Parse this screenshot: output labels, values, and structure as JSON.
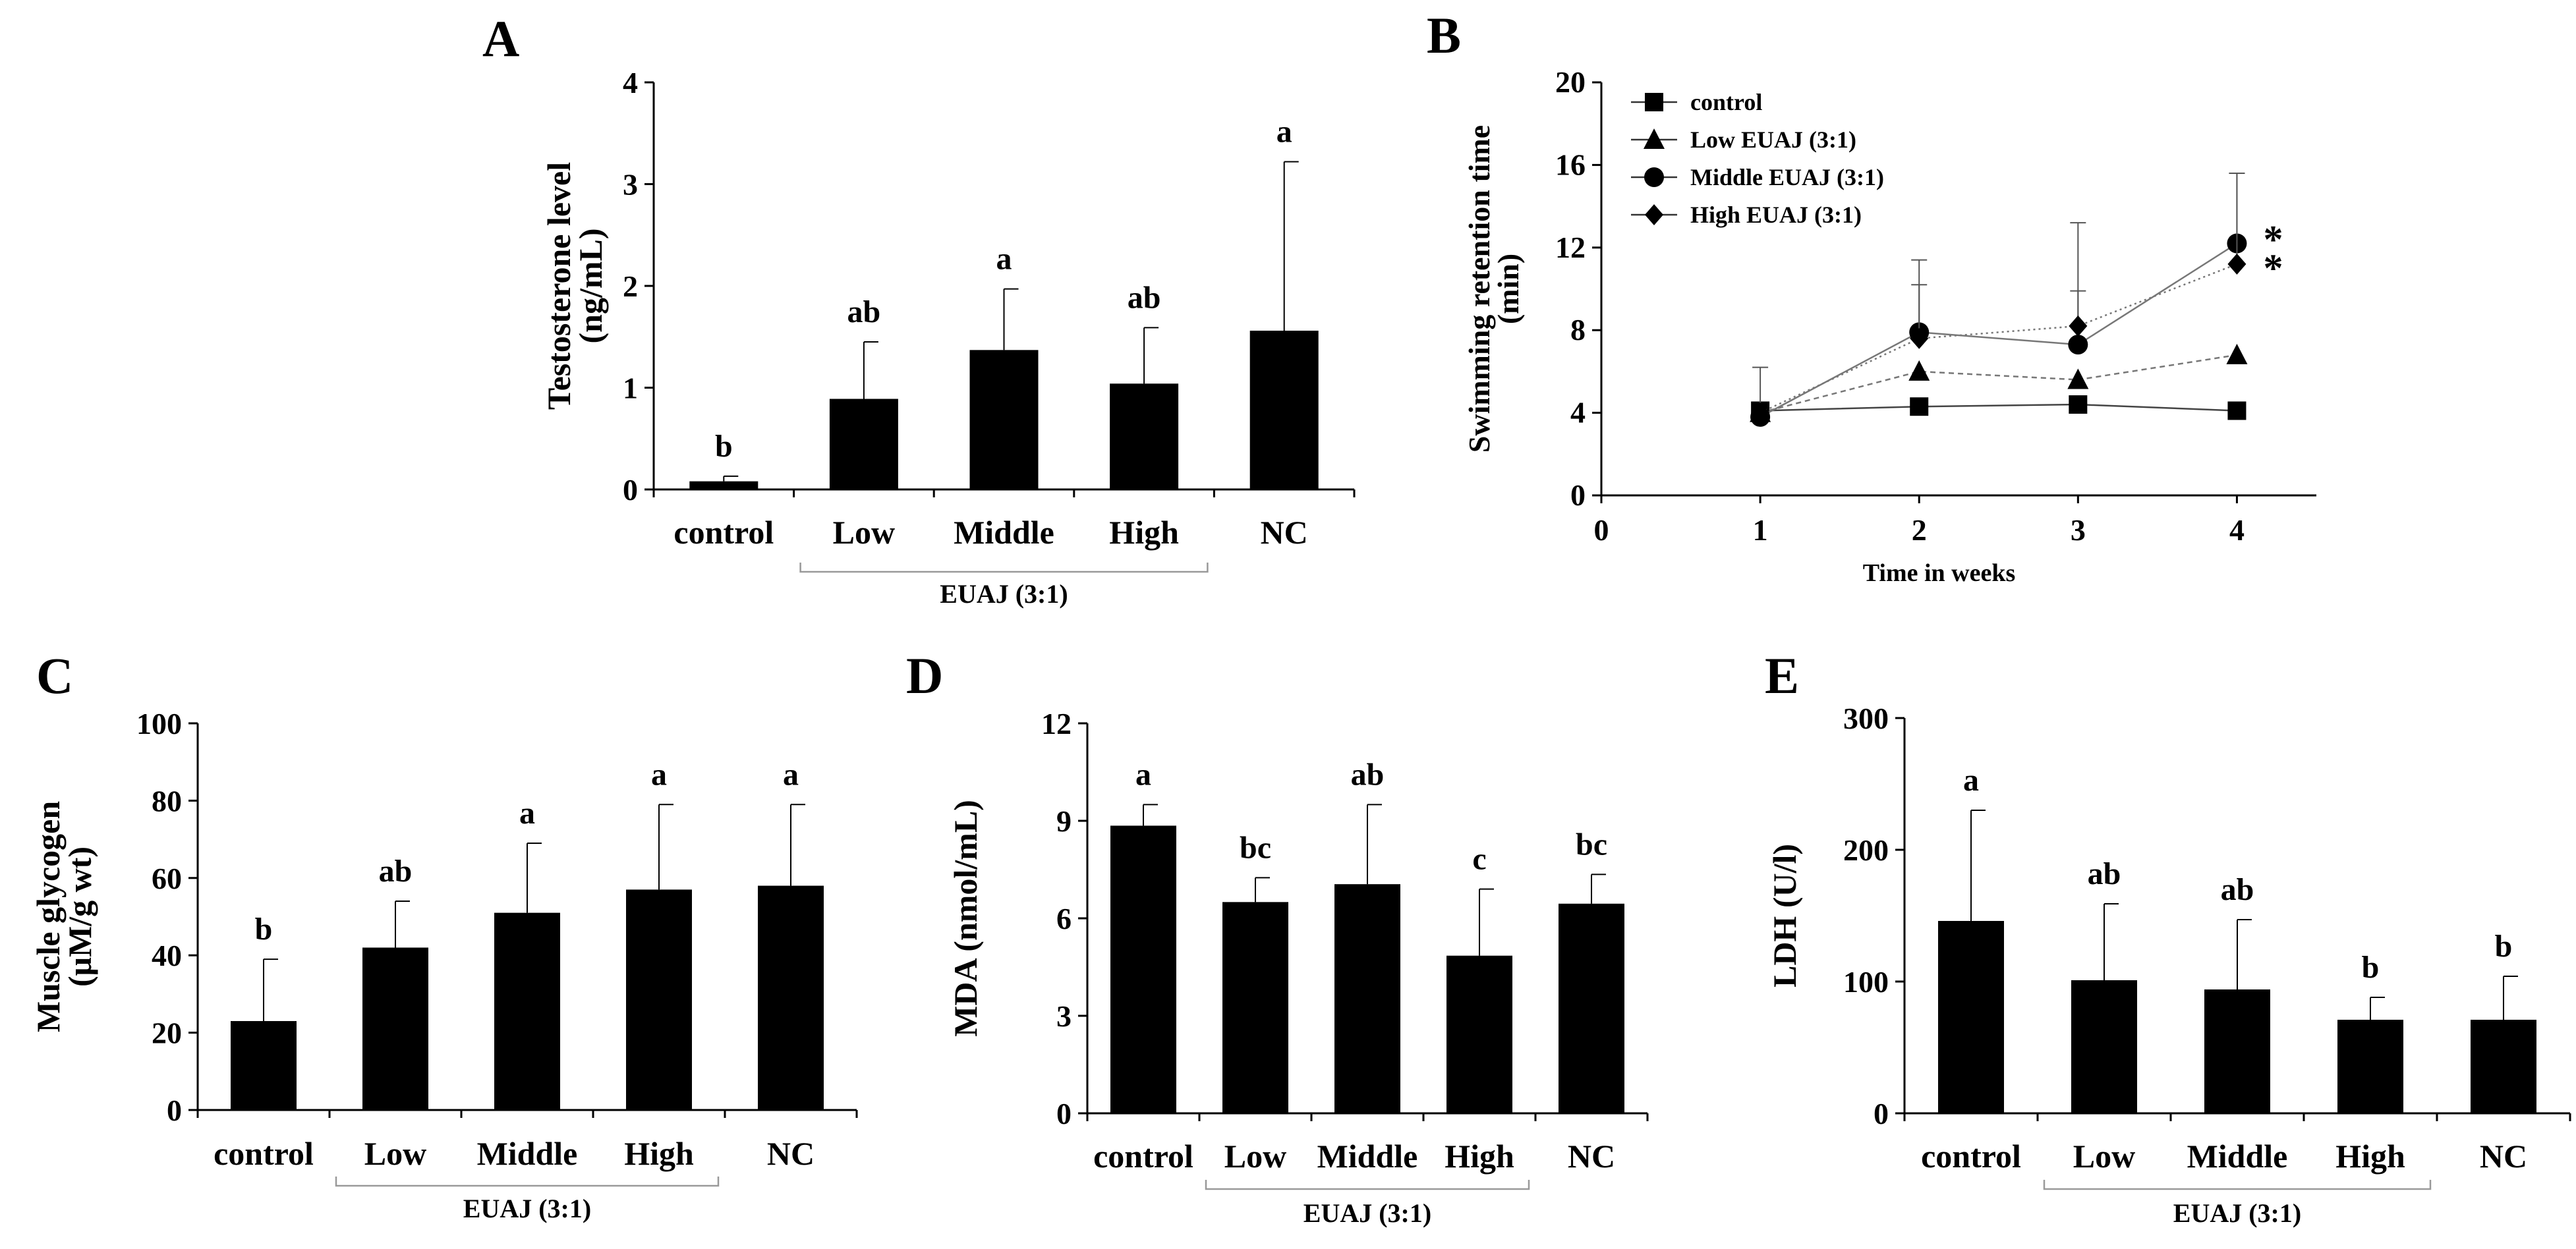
{
  "chart_data": [
    {
      "id": "A",
      "letter": "A",
      "type": "bar",
      "ylabel_lines": [
        "Testosterone level",
        "(ng/mL)"
      ],
      "categories": [
        "control",
        "Low",
        "Middle",
        "High",
        "NC"
      ],
      "values": [
        0.08,
        0.89,
        1.37,
        1.04,
        1.56
      ],
      "errors": [
        0.05,
        0.56,
        0.6,
        0.55,
        1.66
      ],
      "significance": [
        "b",
        "ab",
        "a",
        "ab",
        "a"
      ],
      "ylim": [
        0,
        4
      ],
      "yticks": [
        0,
        1,
        2,
        3,
        4
      ],
      "ytick_labels": [
        "0",
        "1",
        "2",
        "3",
        "4"
      ],
      "group_label": "EUAJ (3:1)",
      "group_span": [
        1,
        3
      ]
    },
    {
      "id": "B",
      "letter": "B",
      "type": "line",
      "ylabel_lines": [
        "Swimming retention time",
        "(min)"
      ],
      "xlabel": "Time in weeks",
      "x": [
        1,
        2,
        3,
        4
      ],
      "xlim": [
        0,
        4.5
      ],
      "xticks": [
        0,
        1,
        2,
        3,
        4
      ],
      "xtick_labels": [
        "0",
        "1",
        "2",
        "3",
        "4"
      ],
      "ylim": [
        0,
        20
      ],
      "yticks": [
        0,
        4,
        8,
        12,
        16,
        20
      ],
      "ytick_labels": [
        "0",
        "4",
        "8",
        "12",
        "16",
        "20"
      ],
      "series": [
        {
          "name": "control",
          "marker": "square",
          "values": [
            4.1,
            4.3,
            4.4,
            4.1
          ],
          "errors": [
            0,
            0,
            0,
            0
          ]
        },
        {
          "name": "Low EUAJ (3:1)",
          "marker": "triangle",
          "values": [
            4.0,
            6.0,
            5.6,
            6.8
          ],
          "errors": [
            0,
            0,
            0,
            0
          ]
        },
        {
          "name": "Middle EUAJ (3:1)",
          "marker": "circle",
          "values": [
            3.8,
            7.9,
            7.3,
            12.2
          ],
          "errors": [
            2.4,
            3.5,
            2.6,
            3.4
          ]
        },
        {
          "name": "High EUAJ (3:1)",
          "marker": "diamond",
          "values": [
            4.0,
            7.6,
            8.2,
            11.2
          ],
          "errors": [
            0,
            2.6,
            5.0,
            4.4
          ]
        }
      ],
      "annotations": [
        "*",
        "*"
      ]
    },
    {
      "id": "C",
      "letter": "C",
      "type": "bar",
      "ylabel_lines": [
        "Muscle glycogen",
        "(μM/g wt)"
      ],
      "categories": [
        "control",
        "Low",
        "Middle",
        "High",
        "NC"
      ],
      "values": [
        23,
        42,
        51,
        57,
        58
      ],
      "errors": [
        16,
        12,
        18,
        22,
        21
      ],
      "significance": [
        "b",
        "ab",
        "a",
        "a",
        "a"
      ],
      "ylim": [
        0,
        100
      ],
      "yticks": [
        0,
        20,
        40,
        60,
        80,
        100
      ],
      "ytick_labels": [
        "0",
        "20",
        "40",
        "60",
        "80",
        "100"
      ],
      "group_label": "EUAJ (3:1)",
      "group_span": [
        1,
        3
      ]
    },
    {
      "id": "D",
      "letter": "D",
      "type": "bar",
      "ylabel_lines": [
        "MDA (nmol/mL)"
      ],
      "categories": [
        "control",
        "Low",
        "Middle",
        "High",
        "NC"
      ],
      "values": [
        8.85,
        6.5,
        7.05,
        4.85,
        6.45
      ],
      "errors": [
        0.65,
        0.75,
        2.45,
        2.05,
        0.9
      ],
      "significance": [
        "a",
        "bc",
        "ab",
        "c",
        "bc"
      ],
      "ylim": [
        0,
        12
      ],
      "yticks": [
        0,
        3,
        6,
        9,
        12
      ],
      "ytick_labels": [
        "0",
        "3",
        "6",
        "9",
        "12"
      ],
      "group_label": "EUAJ (3:1)",
      "group_span": [
        1,
        3
      ]
    },
    {
      "id": "E",
      "letter": "E",
      "type": "bar",
      "ylabel_lines": [
        "LDH (U/l)"
      ],
      "categories": [
        "control",
        "Low",
        "Middle",
        "High",
        "NC"
      ],
      "values": [
        146,
        101,
        94,
        71,
        71
      ],
      "errors": [
        84,
        58,
        53,
        17,
        33
      ],
      "significance": [
        "a",
        "ab",
        "ab",
        "b",
        "b"
      ],
      "ylim": [
        0,
        300
      ],
      "yticks": [
        0,
        100,
        200,
        300
      ],
      "ytick_labels": [
        "0",
        "100",
        "200",
        "300"
      ],
      "group_label": "EUAJ (3:1)",
      "group_span": [
        1,
        3
      ]
    }
  ]
}
